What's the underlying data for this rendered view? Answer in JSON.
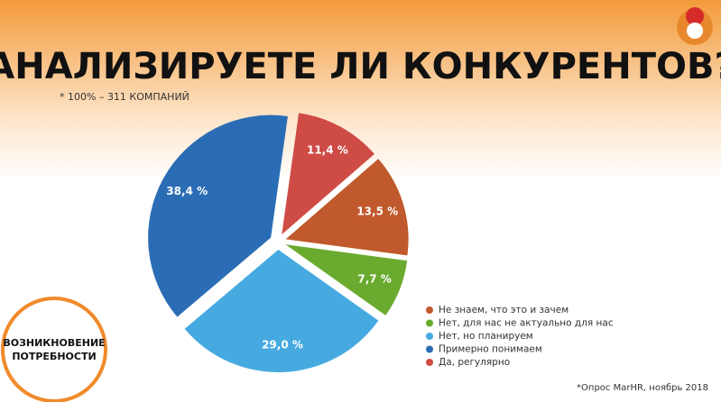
{
  "chart_data": {
    "type": "pie",
    "title": "АНАЛИЗИРУЕТЕ ЛИ КОНКУРЕНТОВ?",
    "subtitle": "* 100% – 311 КОМПАНИЙ",
    "categories": [
      "Не знаем, что это и зачем",
      "Нет, для нас не актуально для нас",
      "Нет, но планируем",
      "Примерно понимаем",
      "Да, регулярно"
    ],
    "values": [
      13.5,
      7.7,
      29.0,
      38.4,
      11.4
    ],
    "value_labels": [
      "13,5 %",
      "7,7 %",
      "29,0 %",
      "38,4 %",
      "11,4 %"
    ],
    "colors": [
      "#c0592b",
      "#6aab2f",
      "#46aae1",
      "#2b6db5",
      "#cf4b45"
    ],
    "legend": "bottom-right"
  },
  "badge": [
    "ВОЗНИКНОВЕНИЕ",
    "ПОТРЕБНОСТИ"
  ],
  "footnote": "*Опрос MarHR, ноябрь 2018"
}
